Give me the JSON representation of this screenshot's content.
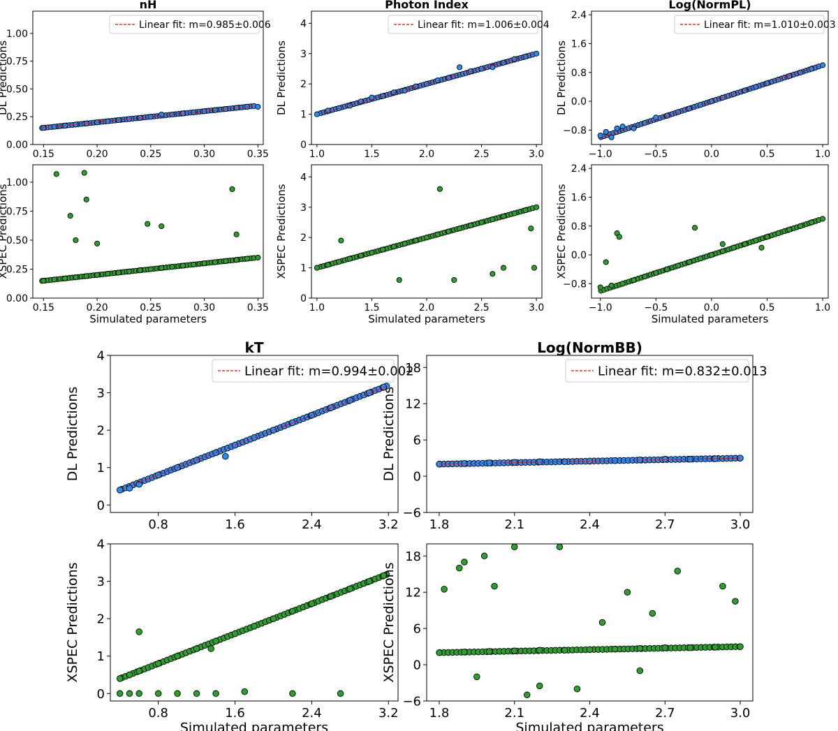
{
  "colors": {
    "dl_point": "#1e90ff",
    "xspec_point": "#2ca02c",
    "point_edge": "#000000",
    "fit_line": "#ff0000"
  },
  "chart_data": [
    {
      "id": "nh",
      "title": "nH",
      "type": "scatter",
      "xlim": [
        0.14,
        0.355
      ],
      "xticks": [
        0.15,
        0.2,
        0.25,
        0.3,
        0.35
      ],
      "xtick_labels": [
        "0.15",
        "0.20",
        "0.25",
        "0.30",
        "0.35"
      ],
      "xlabel": "Simulated parameters",
      "dl": {
        "ylabel": "DL Predictions",
        "ylim": [
          0.0,
          1.2
        ],
        "yticks": [
          0.0,
          0.25,
          0.5,
          0.75,
          1.0
        ],
        "ytick_labels": [
          "0.00",
          "0.25",
          "0.50",
          "0.75",
          "1.00"
        ],
        "legend": "Linear fit: m=0.985±0.006",
        "fit_slope": 0.985,
        "x": [
          0.15,
          0.16,
          0.17,
          0.18,
          0.19,
          0.2,
          0.21,
          0.22,
          0.23,
          0.24,
          0.25,
          0.26,
          0.27,
          0.28,
          0.29,
          0.3,
          0.31,
          0.32,
          0.33,
          0.34,
          0.35
        ],
        "y": [
          0.15,
          0.16,
          0.17,
          0.18,
          0.19,
          0.2,
          0.21,
          0.22,
          0.23,
          0.24,
          0.25,
          0.27,
          0.27,
          0.28,
          0.29,
          0.3,
          0.31,
          0.32,
          0.33,
          0.34,
          0.34
        ]
      },
      "xspec": {
        "ylabel": "XSPEC Predictions",
        "ylim": [
          0.0,
          1.15
        ],
        "yticks": [
          0.0,
          0.25,
          0.5,
          0.75,
          1.0
        ],
        "ytick_labels": [
          "0.00",
          "0.25",
          "0.50",
          "0.75",
          "1.00"
        ],
        "x": [
          0.15,
          0.16,
          0.17,
          0.18,
          0.19,
          0.2,
          0.21,
          0.22,
          0.23,
          0.24,
          0.25,
          0.26,
          0.27,
          0.28,
          0.29,
          0.3,
          0.31,
          0.32,
          0.33,
          0.34,
          0.35,
          0.162,
          0.175,
          0.18,
          0.188,
          0.19,
          0.2,
          0.247,
          0.26,
          0.326,
          0.33
        ],
        "y": [
          0.15,
          0.16,
          0.17,
          0.18,
          0.19,
          0.2,
          0.21,
          0.22,
          0.23,
          0.24,
          0.25,
          0.26,
          0.27,
          0.28,
          0.29,
          0.3,
          0.31,
          0.32,
          0.33,
          0.34,
          0.35,
          1.07,
          0.71,
          0.5,
          1.08,
          0.85,
          0.47,
          0.64,
          0.62,
          0.94,
          0.55
        ]
      }
    },
    {
      "id": "photon-index",
      "title": "Photon Index",
      "type": "scatter",
      "xlim": [
        0.95,
        3.05
      ],
      "xticks": [
        1.0,
        1.5,
        2.0,
        2.5,
        3.0
      ],
      "xtick_labels": [
        "1.0",
        "1.5",
        "2.0",
        "2.5",
        "3.0"
      ],
      "xlabel": "Simulated parameters",
      "dl": {
        "ylabel": "DL Predictions",
        "ylim": [
          0,
          4.4
        ],
        "yticks": [
          0,
          1,
          2,
          3,
          4
        ],
        "ytick_labels": [
          "0",
          "1",
          "2",
          "3",
          "4"
        ],
        "legend": "Linear fit: m=1.006±0.004",
        "fit_slope": 1.006,
        "x": [
          1.0,
          1.1,
          1.2,
          1.3,
          1.4,
          1.5,
          1.6,
          1.7,
          1.8,
          1.9,
          2.0,
          2.1,
          2.2,
          2.3,
          2.4,
          2.5,
          2.6,
          2.7,
          2.8,
          2.9,
          3.0
        ],
        "y": [
          1.0,
          1.12,
          1.2,
          1.28,
          1.42,
          1.55,
          1.6,
          1.72,
          1.78,
          1.92,
          2.0,
          2.12,
          2.2,
          2.55,
          2.42,
          2.5,
          2.55,
          2.7,
          2.82,
          2.9,
          3.0
        ]
      },
      "xspec": {
        "ylabel": "XSPEC Predictions",
        "ylim": [
          0,
          4.4
        ],
        "yticks": [
          0,
          1,
          2,
          3,
          4
        ],
        "ytick_labels": [
          "0",
          "1",
          "2",
          "3",
          "4"
        ],
        "x": [
          1.0,
          1.1,
          1.2,
          1.3,
          1.4,
          1.5,
          1.6,
          1.7,
          1.8,
          1.9,
          2.0,
          2.1,
          2.2,
          2.3,
          2.4,
          2.5,
          2.6,
          2.7,
          2.8,
          2.9,
          3.0,
          1.22,
          1.75,
          2.12,
          2.25,
          2.6,
          2.7,
          2.95,
          2.98
        ],
        "y": [
          1.0,
          1.1,
          1.2,
          1.3,
          1.4,
          1.5,
          1.6,
          1.7,
          1.8,
          1.9,
          2.0,
          2.1,
          2.2,
          2.3,
          2.4,
          2.5,
          2.6,
          2.7,
          2.8,
          2.9,
          3.0,
          1.9,
          0.6,
          3.6,
          0.6,
          0.8,
          1.0,
          2.3,
          1.0
        ]
      }
    },
    {
      "id": "log-normpl",
      "title": "Log(NormPL)",
      "type": "scatter",
      "xlim": [
        -1.08,
        1.05
      ],
      "xticks": [
        -1.0,
        -0.5,
        0.0,
        0.5,
        1.0
      ],
      "xtick_labels": [
        "−1.0",
        "−0.5",
        "0.0",
        "0.5",
        "1.0"
      ],
      "xlabel": "Simulated parameters",
      "dl": {
        "ylabel": "DL Predictions",
        "ylim": [
          -1.2,
          2.5
        ],
        "yticks": [
          -0.8,
          0.0,
          0.8,
          1.6,
          2.4
        ],
        "ytick_labels": [
          "−0.8",
          "0.0",
          "0.8",
          "1.6",
          "2.4"
        ],
        "legend": "Linear fit: m=1.010±0.003",
        "fit_slope": 1.01,
        "x": [
          -1.0,
          -0.95,
          -0.9,
          -0.85,
          -0.8,
          -0.7,
          -0.6,
          -0.5,
          -0.4,
          -0.3,
          -0.2,
          -0.1,
          0.0,
          0.1,
          0.2,
          0.3,
          0.4,
          0.5,
          0.6,
          0.7,
          0.8,
          0.9,
          1.0
        ],
        "y": [
          -0.95,
          -0.85,
          -1.0,
          -0.75,
          -0.7,
          -0.75,
          -0.6,
          -0.45,
          -0.4,
          -0.3,
          -0.2,
          -0.1,
          0.0,
          0.1,
          0.2,
          0.3,
          0.4,
          0.5,
          0.6,
          0.7,
          0.8,
          0.9,
          1.0
        ]
      },
      "xspec": {
        "ylabel": "XSPEC Predictions",
        "ylim": [
          -1.2,
          2.5
        ],
        "yticks": [
          -0.8,
          0.0,
          0.8,
          1.6,
          2.4
        ],
        "ytick_labels": [
          "−0.8",
          "0.0",
          "0.8",
          "1.6",
          "2.4"
        ],
        "x": [
          -1.0,
          -0.9,
          -0.8,
          -0.7,
          -0.6,
          -0.5,
          -0.4,
          -0.3,
          -0.2,
          -0.1,
          0.0,
          0.1,
          0.2,
          0.3,
          0.4,
          0.5,
          0.6,
          0.7,
          0.8,
          0.9,
          1.0,
          -0.85,
          -0.83,
          -0.95,
          -0.15,
          0.1,
          0.45
        ],
        "y": [
          -0.9,
          -0.85,
          -0.8,
          -0.7,
          -0.6,
          -0.5,
          -0.4,
          -0.3,
          -0.2,
          -0.1,
          0.0,
          0.1,
          0.2,
          0.3,
          0.4,
          0.5,
          0.6,
          0.7,
          0.8,
          0.9,
          1.0,
          0.6,
          0.5,
          -0.2,
          0.75,
          0.3,
          0.2
        ]
      }
    },
    {
      "id": "kt",
      "title": "kT",
      "type": "scatter",
      "xlim": [
        0.3,
        3.3
      ],
      "xticks": [
        0.8,
        1.6,
        2.4,
        3.2
      ],
      "xtick_labels": [
        "0.8",
        "1.6",
        "2.4",
        "3.2"
      ],
      "xlabel": "Simulated parameters",
      "dl": {
        "ylabel": "DL Predictions",
        "ylim": [
          -0.2,
          4.0
        ],
        "yticks": [
          0,
          1,
          2,
          3,
          4
        ],
        "ytick_labels": [
          "0",
          "1",
          "2",
          "3",
          "4"
        ],
        "legend": "Linear fit: m=0.994±0.002",
        "fit_slope": 0.994,
        "x": [
          0.4,
          0.5,
          0.6,
          0.8,
          1.0,
          1.2,
          1.4,
          1.5,
          1.6,
          1.8,
          2.0,
          2.2,
          2.4,
          2.6,
          2.8,
          3.0,
          3.15
        ],
        "y": [
          0.4,
          0.45,
          0.55,
          0.8,
          1.0,
          1.2,
          1.4,
          1.3,
          1.6,
          1.8,
          2.0,
          2.2,
          2.4,
          2.6,
          2.8,
          3.0,
          3.15
        ]
      },
      "xspec": {
        "ylabel": "XSPEC Predictions",
        "ylim": [
          -0.2,
          4.0
        ],
        "yticks": [
          0,
          1,
          2,
          3,
          4
        ],
        "ytick_labels": [
          "0",
          "1",
          "2",
          "3",
          "4"
        ],
        "x": [
          0.4,
          0.5,
          0.6,
          0.8,
          1.0,
          1.2,
          1.4,
          1.6,
          1.8,
          2.0,
          2.2,
          2.4,
          2.6,
          2.8,
          3.0,
          3.15,
          0.4,
          0.5,
          0.6,
          0.8,
          1.0,
          1.2,
          1.4,
          1.7,
          2.2,
          2.7,
          0.6,
          1.35
        ],
        "y": [
          0.4,
          0.5,
          0.6,
          0.8,
          1.0,
          1.2,
          1.4,
          1.6,
          1.8,
          2.0,
          2.2,
          2.4,
          2.6,
          2.8,
          3.0,
          3.15,
          0.0,
          0.0,
          0.0,
          0.0,
          0.0,
          0.0,
          0.0,
          0.05,
          0.0,
          0.0,
          1.65,
          1.2
        ]
      }
    },
    {
      "id": "log-normbb",
      "title": "Log(NormBB)",
      "type": "scatter",
      "xlim": [
        1.75,
        3.05
      ],
      "xticks": [
        1.8,
        2.1,
        2.4,
        2.7,
        3.0
      ],
      "xtick_labels": [
        "1.8",
        "2.1",
        "2.4",
        "2.7",
        "3.0"
      ],
      "xlabel": "Simulated parameters",
      "dl": {
        "ylabel": "DL Predictions",
        "ylim": [
          -6,
          20
        ],
        "yticks": [
          -6,
          0,
          6,
          12,
          18
        ],
        "ytick_labels": [
          "−6",
          "0",
          "6",
          "12",
          "18"
        ],
        "legend": "Linear fit: m=0.832±0.013",
        "fit_slope": 0.832,
        "x": [
          1.8,
          1.9,
          2.0,
          2.1,
          2.2,
          2.3,
          2.4,
          2.5,
          2.6,
          2.7,
          2.8,
          2.9,
          3.0
        ],
        "y": [
          2.0,
          2.1,
          2.2,
          2.3,
          2.4,
          2.4,
          2.5,
          2.6,
          2.7,
          2.8,
          2.8,
          2.9,
          3.0
        ]
      },
      "xspec": {
        "ylabel": "XSPEC Predictions",
        "ylim": [
          -6,
          20
        ],
        "yticks": [
          -6,
          0,
          6,
          12,
          18
        ],
        "ytick_labels": [
          "−6",
          "0",
          "6",
          "12",
          "18"
        ],
        "x": [
          1.8,
          1.9,
          2.0,
          2.1,
          2.2,
          2.3,
          2.4,
          2.5,
          2.6,
          2.7,
          2.8,
          2.9,
          3.0,
          1.82,
          1.88,
          1.9,
          1.98,
          2.02,
          2.1,
          2.15,
          2.28,
          2.35,
          2.45,
          2.55,
          2.65,
          2.75,
          2.93,
          2.98,
          1.95,
          2.2,
          2.6
        ],
        "y": [
          2.0,
          2.1,
          2.2,
          2.3,
          2.4,
          2.4,
          2.5,
          2.6,
          2.7,
          2.8,
          2.8,
          2.9,
          3.0,
          12.5,
          16.0,
          17.0,
          18.0,
          13.0,
          19.5,
          -5.0,
          19.5,
          -4.0,
          7.0,
          12.0,
          8.5,
          15.5,
          13.0,
          10.5,
          -2.0,
          -3.5,
          -1.0
        ]
      }
    }
  ]
}
